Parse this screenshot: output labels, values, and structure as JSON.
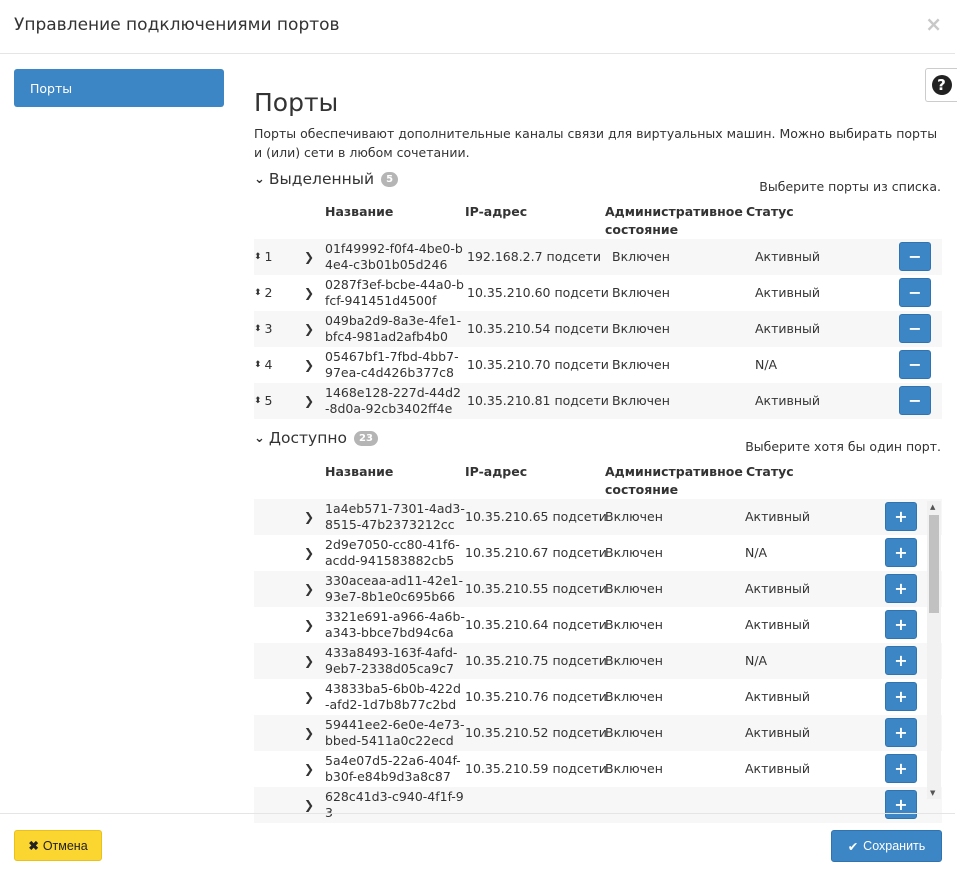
{
  "dialog": {
    "title": "Управление подключениями портов",
    "close_icon": "×"
  },
  "sidebar": {
    "items": [
      {
        "label": "Порты"
      }
    ]
  },
  "help_icon": "?",
  "main": {
    "title": "Порты",
    "description": "Порты обеспечивают дополнительные каналы связи для виртуальных машин. Можно выбирать порты и (или) сети в любом сочетании.",
    "columns": {
      "name": "Название",
      "ip": "IP-адрес",
      "admin": "Административное состояние",
      "status": "Статус"
    },
    "allocated": {
      "label": "Выделенный",
      "count": "5",
      "hint": "Выберите порты из списка.",
      "rows": [
        {
          "order": "1",
          "name": "01f49992-f0f4-4be0-b4e4-c3b01b05d246",
          "ip": "192.168.2.7 подсети",
          "admin": "Включен",
          "status": "Активный"
        },
        {
          "order": "2",
          "name": "0287f3ef-bcbe-44a0-bfcf-941451d4500f",
          "ip": "10.35.210.60 подсети",
          "admin": "Включен",
          "status": "Активный"
        },
        {
          "order": "3",
          "name": "049ba2d9-8a3e-4fe1-bfc4-981ad2afb4b0",
          "ip": "10.35.210.54 подсети",
          "admin": "Включен",
          "status": "Активный"
        },
        {
          "order": "4",
          "name": "05467bf1-7fbd-4bb7-97ea-c4d426b377c8",
          "ip": "10.35.210.70 подсети",
          "admin": "Включен",
          "status": "N/A"
        },
        {
          "order": "5",
          "name": "1468e128-227d-44d2-8d0a-92cb3402ff4e",
          "ip": "10.35.210.81 подсети",
          "admin": "Включен",
          "status": "Активный"
        }
      ]
    },
    "available": {
      "label": "Доступно",
      "count": "23",
      "hint": "Выберите хотя бы один порт.",
      "rows": [
        {
          "name": "1a4eb571-7301-4ad3-8515-47b2373212cc",
          "ip": "10.35.210.65 подсети",
          "admin": "Включен",
          "status": "Активный"
        },
        {
          "name": "2d9e7050-cc80-41f6-acdd-941583882cb5",
          "ip": "10.35.210.67 подсети",
          "admin": "Включен",
          "status": "N/A"
        },
        {
          "name": "330aceaa-ad11-42e1-93e7-8b1e0c695b66",
          "ip": "10.35.210.55 подсети",
          "admin": "Включен",
          "status": "Активный"
        },
        {
          "name": "3321e691-a966-4a6b-a343-bbce7bd94c6a",
          "ip": "10.35.210.64 подсети",
          "admin": "Включен",
          "status": "Активный"
        },
        {
          "name": "433a8493-163f-4afd-9eb7-2338d05ca9c7",
          "ip": "10.35.210.75 подсети",
          "admin": "Включен",
          "status": "N/A"
        },
        {
          "name": "43833ba5-6b0b-422d-afd2-1d7b8b77c2bd",
          "ip": "10.35.210.76 подсети",
          "admin": "Включен",
          "status": "Активный"
        },
        {
          "name": "59441ee2-6e0e-4e73-bbed-5411a0c22ecd",
          "ip": "10.35.210.52 подсети",
          "admin": "Включен",
          "status": "Активный"
        },
        {
          "name": "5a4e07d5-22a6-404f-b30f-e84b9d3a8c87",
          "ip": "10.35.210.59 подсети",
          "admin": "Включен",
          "status": "Активный"
        },
        {
          "name": "628c41d3-c940-4f1f-93",
          "ip": "",
          "admin": "",
          "status": ""
        }
      ]
    }
  },
  "footer": {
    "cancel_label": "Отмена",
    "save_label": "Сохранить"
  },
  "colors": {
    "primary": "#3d86c6",
    "warning": "#fbd530"
  }
}
